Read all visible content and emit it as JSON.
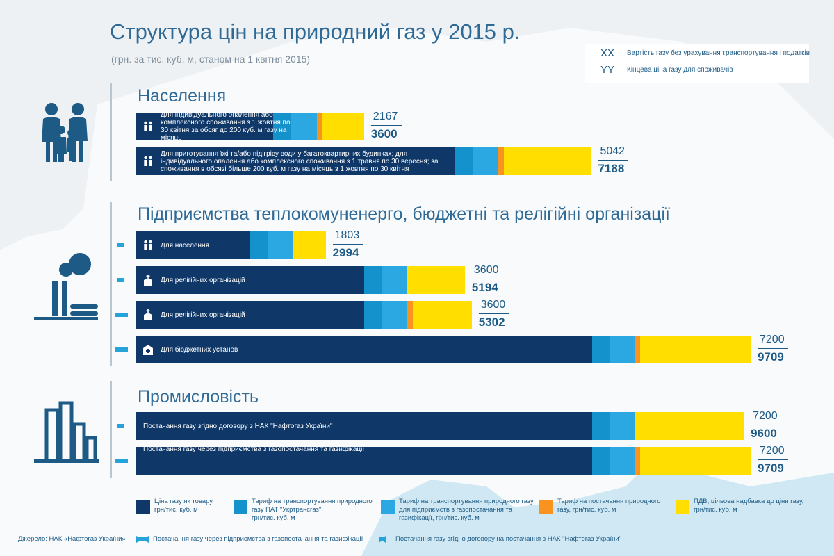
{
  "title": "Структура цін на природний газ у 2015 р.",
  "subtitle": "(грн. за тис. куб. м, станом на 1 квітня 2015)",
  "key": {
    "xx_code": "XX",
    "xx_text": "Вартість газу без урахування транспортування і податків",
    "yy_code": "YY",
    "yy_text": "Кінцева ціна газу для споживачів"
  },
  "colors": {
    "commodity": "#0f3869",
    "transport_utg": "#1392cc",
    "transport_distrib": "#2ba8e2",
    "supply": "#f7931e",
    "vat": "#ffde00"
  },
  "sections": [
    {
      "title": "Населення",
      "icon": "family-icon"
    },
    {
      "title": "Підприємства теплокомуненерго, бюджетні та релігійні організації",
      "icon": "factory-icon"
    },
    {
      "title": "Промисловість",
      "icon": "industry-icon"
    }
  ],
  "bars": [
    {
      "label": "Для індивідуального опалення або комплексного споживання з 1 жовтня по 30 квітня за обсяг до 200 куб. м газу на місяць",
      "icon": "people-icon",
      "tick": "",
      "xx": "2167",
      "yy": "3600"
    },
    {
      "label": "Для приготування їжі та/або підігріву води у багатоквартирних будинках; для індивідуального опалення або комплексного споживання з 1 травня по 30 вересня; за споживання в обсязі більше 200 куб. м газу на місяць з 1 жовтня по 30 квітня",
      "icon": "people-icon",
      "tick": "",
      "xx": "5042",
      "yy": "7188"
    },
    {
      "label": "Для населення",
      "icon": "people-icon",
      "tick": "tick-contract",
      "xx": "1803",
      "yy": "2994"
    },
    {
      "label": "Для релігійних організацій",
      "icon": "church-icon",
      "tick": "tick-contract",
      "xx": "3600",
      "yy": "5194"
    },
    {
      "label": "Для релігійних організацій",
      "icon": "church-icon",
      "tick": "tick-distributor",
      "xx": "3600",
      "yy": "5302"
    },
    {
      "label": "Для бюджетних установ",
      "icon": "hospital-icon",
      "tick": "tick-distributor",
      "xx": "7200",
      "yy": "9709"
    },
    {
      "label": "Постачання газу згідно договору з НАК \"Нафтогаз України\"",
      "icon": "",
      "tick": "tick-contract",
      "xx": "7200",
      "yy": "9600"
    },
    {
      "label": "Постачання газу через підприємства з газопостачання та газифікації",
      "icon": "",
      "tick": "tick-distributor",
      "xx": "7200",
      "yy": "9709"
    }
  ],
  "legend": [
    {
      "text": "Ціна газу як товару,\nгрн/тис. куб. м",
      "color": "#0f3869"
    },
    {
      "text": "Тариф на транспортування природного\nгазу ПАТ \"Укртрансгаз\",\nгрн/тис. куб. м",
      "color": "#1392cc"
    },
    {
      "text": "Тариф на транспортування природного газу\nдля підприємств з газопостачання та\nгазифікації, грн/тис. куб. м",
      "color": "#2ba8e2"
    },
    {
      "text": "Тариф на постачання природного\nгазу, грн/тис. куб. м",
      "color": "#f7931e"
    },
    {
      "text": "ПДВ, цільова надбавка до ціни газу,\nгрн/тис. куб. м",
      "color": "#ffde00"
    }
  ],
  "source": "Джерело: НАК «Нафтогаз України»",
  "footnotes": [
    {
      "text": "Постачання газу через підприємства з газопостачання та газифікації",
      "icon": "distributor-tick-icon"
    },
    {
      "text": "Постачання газу згідно договору на постачання з НАК \"Нафтогаз України\"",
      "icon": "contract-tick-icon"
    }
  ],
  "chart_data": {
    "type": "bar",
    "orientation": "horizontal",
    "stacked": true,
    "title": "Структура цін на природний газ у 2015 р.",
    "subtitle": "(грн. за тис. куб. м, станом на 1 квітня 2015)",
    "xlim": [
      0,
      9709
    ],
    "categories": [
      "Для індивідуального опалення або комплексного споживання з 1 жовтня по 30 квітня за обсяг до 200 куб. м газу на місяць",
      "Для приготування їжі та/або підігріву води у багатоквартирних будинках; для індивідуального опалення або комплексного споживання з 1 травня по 30 вересня; за споживання в обсязі більше 200 куб. м газу на місяць з 1 жовтня по 30 квітня",
      "Для населення",
      "Для релігійних організацій",
      "Для релігійних організацій",
      "Для бюджетних установ",
      "Постачання газу згідно договору з НАК \"Нафтогаз України\"",
      "Постачання газу через підприємства з газопостачання та газифікації"
    ],
    "series": [
      {
        "name": "Ціна газу як товару, грн/тис. куб. м",
        "color": "#0f3869",
        "values": [
          2167,
          5042,
          1803,
          3600,
          3600,
          7200,
          7200,
          7200
        ]
      },
      {
        "name": "Тариф на транспортування природного газу ПАТ \"Укртрансгаз\", грн/тис. куб. м",
        "color": "#1392cc",
        "values": [
          284,
          284,
          284,
          284,
          284,
          284,
          284,
          284
        ]
      },
      {
        "name": "Тариф на транспортування природного газу для підприємств з газопостачання та газифікації, грн/тис. куб. м",
        "color": "#2ba8e2",
        "values": [
          400,
          400,
          400,
          400,
          400,
          400,
          400,
          400
        ]
      },
      {
        "name": "Тариф на постачання природного газу, грн/тис. куб. м",
        "color": "#f7931e",
        "values": [
          84,
          84,
          0,
          0,
          84,
          84,
          0,
          84
        ]
      },
      {
        "name": "ПДВ, цільова надбавка до ціни газу, грн/тис. куб. м",
        "color": "#ffde00",
        "values": [
          665,
          1378,
          507,
          910,
          934,
          1741,
          1716,
          1741
        ]
      }
    ],
    "totals": [
      3600,
      7188,
      2994,
      5194,
      5302,
      9709,
      9600,
      9709
    ]
  }
}
